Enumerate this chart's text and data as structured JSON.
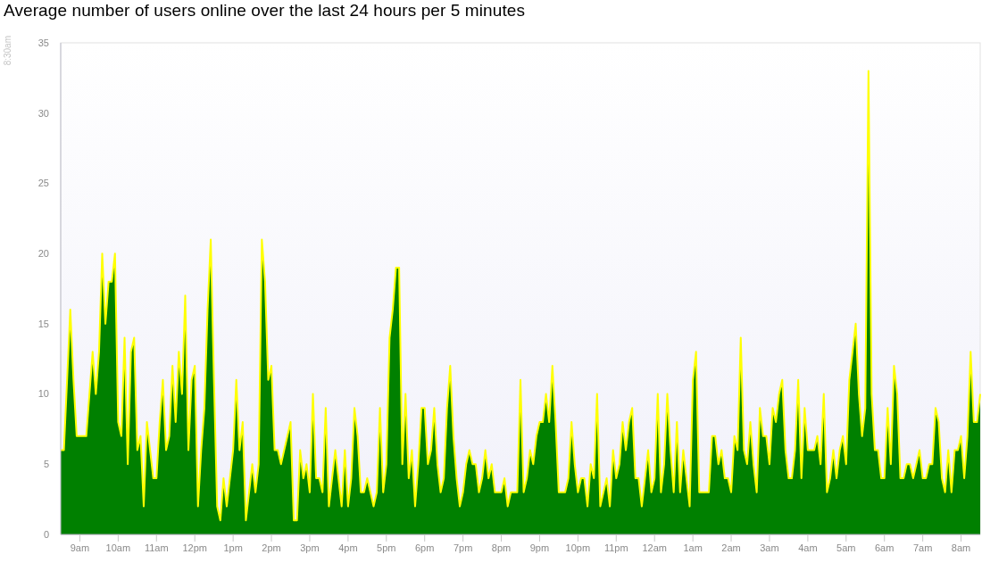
{
  "chart_data": {
    "type": "area",
    "title": "Average number of users online over the last 24 hours per 5 minutes",
    "annotations": [
      "8:30am"
    ],
    "categories": [
      null,
      null,
      null,
      null,
      null,
      null,
      "9am",
      null,
      null,
      null,
      null,
      null,
      null,
      null,
      null,
      null,
      null,
      null,
      "10am",
      null,
      null,
      null,
      null,
      null,
      null,
      null,
      null,
      null,
      null,
      null,
      "11am",
      null,
      null,
      null,
      null,
      null,
      null,
      null,
      null,
      null,
      null,
      null,
      "12pm",
      null,
      null,
      null,
      null,
      null,
      null,
      null,
      null,
      null,
      null,
      null,
      "1pm",
      null,
      null,
      null,
      null,
      null,
      null,
      null,
      null,
      null,
      null,
      null,
      "2pm",
      null,
      null,
      null,
      null,
      null,
      null,
      null,
      null,
      null,
      null,
      null,
      "3pm",
      null,
      null,
      null,
      null,
      null,
      null,
      null,
      null,
      null,
      null,
      null,
      "4pm",
      null,
      null,
      null,
      null,
      null,
      null,
      null,
      null,
      null,
      null,
      null,
      "5pm",
      null,
      null,
      null,
      null,
      null,
      null,
      null,
      null,
      null,
      null,
      null,
      "6pm",
      null,
      null,
      null,
      null,
      null,
      null,
      null,
      null,
      null,
      null,
      null,
      "7pm",
      null,
      null,
      null,
      null,
      null,
      null,
      null,
      null,
      null,
      null,
      null,
      "8pm",
      null,
      null,
      null,
      null,
      null,
      null,
      null,
      null,
      null,
      null,
      null,
      "9pm",
      null,
      null,
      null,
      null,
      null,
      null,
      null,
      null,
      null,
      null,
      null,
      "10pm",
      null,
      null,
      null,
      null,
      null,
      null,
      null,
      null,
      null,
      null,
      null,
      "11pm",
      null,
      null,
      null,
      null,
      null,
      null,
      null,
      null,
      null,
      null,
      null,
      "12am",
      null,
      null,
      null,
      null,
      null,
      null,
      null,
      null,
      null,
      null,
      null,
      "1am",
      null,
      null,
      null,
      null,
      null,
      null,
      null,
      null,
      null,
      null,
      null,
      "2am",
      null,
      null,
      null,
      null,
      null,
      null,
      null,
      null,
      null,
      null,
      null,
      "3am",
      null,
      null,
      null,
      null,
      null,
      null,
      null,
      null,
      null,
      null,
      null,
      "4am",
      null,
      null,
      null,
      null,
      null,
      null,
      null,
      null,
      null,
      null,
      null,
      "5am",
      null,
      null,
      null,
      null,
      null,
      null,
      null,
      null,
      null,
      null,
      null,
      "6am",
      null,
      null,
      null,
      null,
      null,
      null,
      null,
      null,
      null,
      null,
      null,
      "7am",
      null,
      null,
      null,
      null,
      null,
      null,
      null,
      null,
      null,
      null,
      null,
      "8am",
      null,
      null,
      null,
      null,
      null,
      null
    ],
    "values": [
      6,
      6,
      11,
      16,
      11,
      7,
      7,
      7,
      7,
      10,
      13,
      10,
      13,
      20,
      15,
      18,
      18,
      20,
      8,
      7,
      14,
      5,
      13,
      14,
      6,
      7,
      2,
      8,
      6,
      4,
      4,
      8,
      11,
      6,
      7,
      12,
      8,
      13,
      10,
      17,
      6,
      11,
      12,
      2,
      6,
      9,
      16,
      21,
      11,
      2,
      1,
      4,
      2,
      4,
      6,
      11,
      6,
      8,
      1,
      3,
      5,
      3,
      5,
      21,
      18,
      11,
      12,
      6,
      6,
      5,
      6,
      7,
      8,
      1,
      1,
      6,
      4,
      5,
      3,
      10,
      4,
      4,
      3,
      9,
      2,
      4,
      6,
      4,
      2,
      6,
      2,
      4,
      9,
      7,
      3,
      3,
      4,
      3,
      2,
      3,
      9,
      3,
      5,
      14,
      16,
      19,
      19,
      5,
      10,
      4,
      6,
      2,
      5,
      9,
      9,
      5,
      6,
      9,
      5,
      3,
      4,
      9,
      12,
      7,
      4,
      2,
      3,
      5,
      6,
      5,
      5,
      3,
      4,
      6,
      4,
      5,
      3,
      3,
      3,
      4,
      2,
      3,
      3,
      3,
      11,
      3,
      4,
      6,
      5,
      7,
      8,
      8,
      10,
      8,
      12,
      8,
      3,
      3,
      3,
      4,
      8,
      5,
      3,
      4,
      4,
      2,
      5,
      4,
      10,
      2,
      3,
      4,
      2,
      6,
      4,
      5,
      8,
      6,
      8,
      9,
      4,
      4,
      2,
      4,
      6,
      3,
      4,
      10,
      3,
      5,
      10,
      6,
      3,
      8,
      3,
      6,
      4,
      2,
      11,
      13,
      3,
      3,
      3,
      3,
      7,
      7,
      5,
      6,
      4,
      4,
      3,
      7,
      6,
      14,
      6,
      5,
      8,
      5,
      3,
      9,
      7,
      7,
      5,
      9,
      8,
      10,
      11,
      6,
      4,
      4,
      6,
      11,
      4,
      9,
      6,
      6,
      6,
      7,
      5,
      10,
      3,
      4,
      6,
      4,
      6,
      7,
      5,
      11,
      13,
      15,
      10,
      7,
      9,
      33,
      10,
      6,
      6,
      4,
      4,
      9,
      5,
      12,
      10,
      4,
      4,
      5,
      5,
      4,
      5,
      6,
      4,
      4,
      5,
      5,
      9,
      8,
      4,
      3,
      6,
      3,
      6,
      6,
      7,
      4,
      7,
      13,
      8,
      8,
      10
    ],
    "color": "#008000",
    "ylim": [
      0,
      35
    ],
    "yticks": [
      0,
      5,
      10,
      15,
      20,
      25,
      30,
      35
    ]
  }
}
